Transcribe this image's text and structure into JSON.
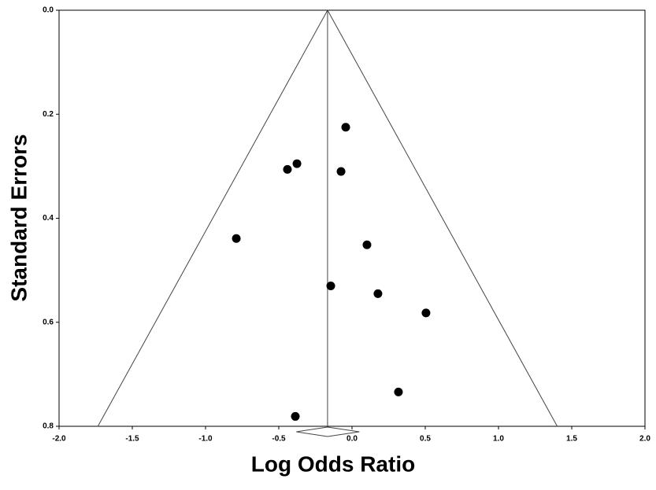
{
  "chart_data": {
    "type": "funnel",
    "x_label": "Log Odds Ratio",
    "y_label": "Standard Errors",
    "x": [
      -0.043,
      -0.376,
      -0.441,
      -0.075,
      -0.79,
      0.102,
      -0.145,
      0.177,
      0.505,
      0.317,
      -0.387
    ],
    "values": [
      0.225,
      0.295,
      0.306,
      0.31,
      0.439,
      0.451,
      0.53,
      0.545,
      0.582,
      0.734,
      0.781
    ],
    "color": "#000000",
    "funnel_center": -0.167,
    "funnel_halfwidth_per_se": 1.96,
    "summary": {
      "estimate": -0.167,
      "ci": [
        -0.38,
        0.05
      ]
    },
    "xlim": [
      -2.0,
      2.0
    ],
    "ylim": [
      0.8,
      0.0
    ],
    "y_inverted": true,
    "xticks": [
      {
        "value": -2,
        "label": "-2.0"
      },
      {
        "value": -1.5,
        "label": "-1.5"
      },
      {
        "value": -1,
        "label": "-1.0"
      },
      {
        "value": -0.5,
        "label": "-0.5"
      },
      {
        "value": 0,
        "label": "0.0"
      },
      {
        "value": 0.5,
        "label": "0.5"
      },
      {
        "value": 1,
        "label": "1.0"
      },
      {
        "value": 1.5,
        "label": "1.5"
      },
      {
        "value": 2,
        "label": "2.0"
      }
    ],
    "yticks": [
      {
        "value": 0,
        "label": "0.0"
      },
      {
        "value": 0.2,
        "label": "0.2"
      },
      {
        "value": 0.4,
        "label": "0.4"
      },
      {
        "value": 0.6,
        "label": "0.6"
      },
      {
        "value": 0.8,
        "label": "0.8"
      }
    ],
    "grid": false
  }
}
